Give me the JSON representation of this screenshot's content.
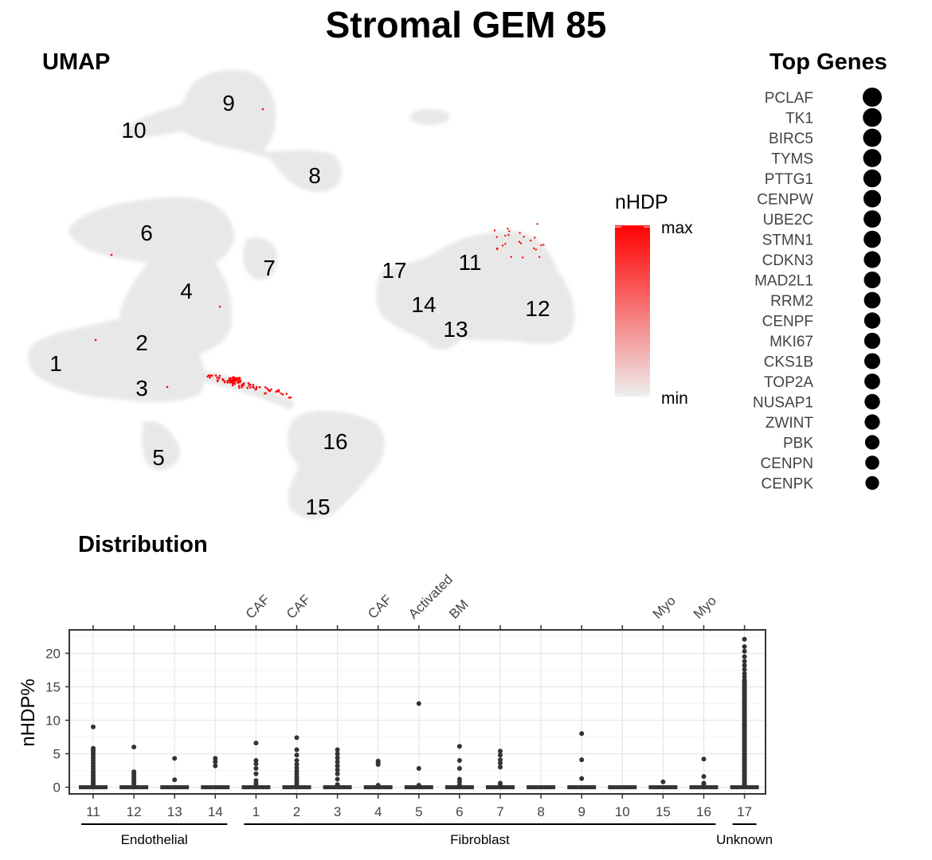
{
  "title": "Stromal GEM 85",
  "umap": {
    "title": "UMAP",
    "cluster_labels": [
      "1",
      "2",
      "3",
      "4",
      "5",
      "6",
      "7",
      "8",
      "9",
      "10",
      "11",
      "12",
      "13",
      "14",
      "15",
      "16",
      "17"
    ]
  },
  "legend": {
    "title": "nHDP",
    "max_label": "max",
    "min_label": "min",
    "color_max": "#ff0000",
    "color_min": "#eeeeee"
  },
  "top_genes": {
    "title": "Top Genes",
    "genes": [
      {
        "name": "PCLAF",
        "weight": 1.0
      },
      {
        "name": "TK1",
        "weight": 0.97
      },
      {
        "name": "BIRC5",
        "weight": 0.92
      },
      {
        "name": "TYMS",
        "weight": 0.9
      },
      {
        "name": "PTTG1",
        "weight": 0.88
      },
      {
        "name": "CENPW",
        "weight": 0.85
      },
      {
        "name": "UBE2C",
        "weight": 0.83
      },
      {
        "name": "STMN1",
        "weight": 0.81
      },
      {
        "name": "CDKN3",
        "weight": 0.79
      },
      {
        "name": "MAD2L1",
        "weight": 0.77
      },
      {
        "name": "RRM2",
        "weight": 0.75
      },
      {
        "name": "CENPF",
        "weight": 0.73
      },
      {
        "name": "MKI67",
        "weight": 0.71
      },
      {
        "name": "CKS1B",
        "weight": 0.69
      },
      {
        "name": "TOP2A",
        "weight": 0.67
      },
      {
        "name": "NUSAP1",
        "weight": 0.65
      },
      {
        "name": "ZWINT",
        "weight": 0.63
      },
      {
        "name": "PBK",
        "weight": 0.55
      },
      {
        "name": "CENPN",
        "weight": 0.5
      },
      {
        "name": "CENPK",
        "weight": 0.47
      }
    ]
  },
  "distribution": {
    "title": "Distribution",
    "ylabel": "nHDP%",
    "groups": [
      {
        "name": "Endothelial",
        "from": 0,
        "to": 3
      },
      {
        "name": "Fibroblast",
        "from": 4,
        "to": 15
      },
      {
        "name": "Unknown",
        "from": 16,
        "to": 16
      }
    ]
  },
  "chart_data": {
    "type": "scatter",
    "ylim": [
      -1,
      23.5
    ],
    "yticks": [
      0,
      5,
      10,
      15,
      20
    ],
    "grid": true,
    "categories": [
      "11",
      "12",
      "13",
      "14",
      "1",
      "2",
      "3",
      "4",
      "5",
      "6",
      "7",
      "8",
      "9",
      "10",
      "15",
      "16",
      "17"
    ],
    "top_labels": [
      "",
      "",
      "",
      "",
      "CAF",
      "CAF",
      "",
      "CAF",
      "Activated",
      "BM",
      "",
      "",
      "",
      "",
      "Myo",
      "Myo",
      ""
    ],
    "outliers": [
      [
        0.2,
        0.4,
        0.6,
        0.8,
        1.0,
        1.2,
        1.5,
        1.8,
        2.1,
        2.4,
        2.8,
        3.2,
        3.6,
        4.0,
        4.4,
        4.8,
        5.2,
        5.5,
        5.8,
        9.0
      ],
      [
        0.2,
        0.5,
        0.8,
        1.1,
        1.4,
        1.7,
        2.0,
        2.3,
        6.0
      ],
      [
        1.1,
        4.3
      ],
      [
        3.2,
        3.8,
        4.3
      ],
      [
        0.3,
        0.6,
        1.0,
        2.0,
        2.8,
        3.5,
        4.0,
        6.6
      ],
      [
        0.3,
        0.6,
        0.9,
        1.2,
        1.6,
        2.0,
        2.4,
        2.9,
        3.4,
        4.0,
        4.8,
        5.6,
        7.4
      ],
      [
        0.4,
        1.2,
        2.0,
        2.6,
        3.2,
        3.8,
        4.4,
        5.0,
        5.6
      ],
      [
        0.3,
        3.4,
        3.7,
        3.9
      ],
      [
        0.3,
        2.8,
        12.5
      ],
      [
        0.3,
        0.8,
        1.2,
        2.8,
        4.0,
        6.1
      ],
      [
        0.3,
        0.6,
        3.0,
        3.6,
        4.1,
        4.8,
        5.4
      ],
      [],
      [
        1.3,
        4.1,
        8.0
      ],
      [],
      [
        0.8
      ],
      [
        0.3,
        0.6,
        1.6,
        4.2
      ],
      [
        0.2,
        0.4,
        0.6,
        0.8,
        1.0,
        1.2,
        1.4,
        1.6,
        1.8,
        2.0,
        2.2,
        2.4,
        2.6,
        2.8,
        3.0,
        3.2,
        3.4,
        3.6,
        3.8,
        4.0,
        4.2,
        4.4,
        4.6,
        4.8,
        5.0,
        5.2,
        5.4,
        5.6,
        5.8,
        6.0,
        6.2,
        6.4,
        6.6,
        6.8,
        7.0,
        7.2,
        7.4,
        7.6,
        7.8,
        8.0,
        8.2,
        8.4,
        8.6,
        8.8,
        9.0,
        9.2,
        9.4,
        9.6,
        9.8,
        10.0,
        10.2,
        10.4,
        10.6,
        10.8,
        11.0,
        11.2,
        11.4,
        11.6,
        11.8,
        12.0,
        12.2,
        12.4,
        12.6,
        12.8,
        13.0,
        13.2,
        13.4,
        13.6,
        13.8,
        14.0,
        14.2,
        14.4,
        14.6,
        14.8,
        15.0,
        15.2,
        15.4,
        15.6,
        15.8,
        16.0,
        16.5,
        17.0,
        17.6,
        18.2,
        18.8,
        19.5,
        20.3,
        21.0,
        22.1
      ]
    ]
  }
}
